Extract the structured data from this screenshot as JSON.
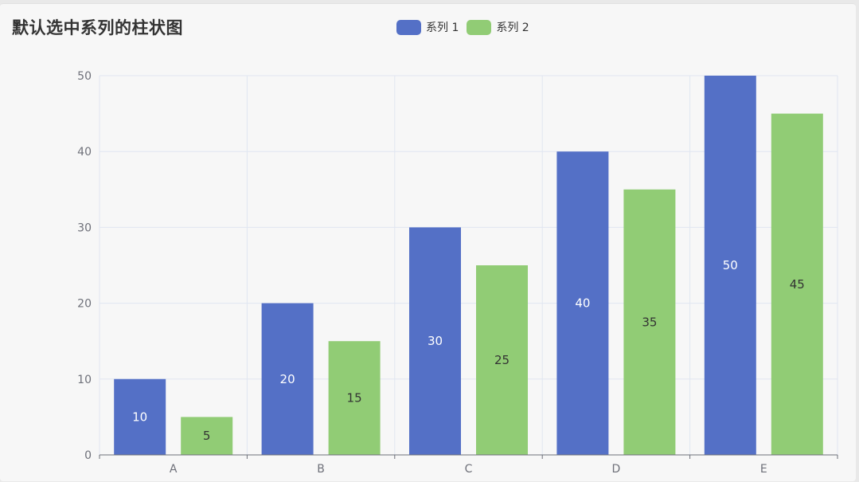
{
  "title": "默认选中系列的柱状图",
  "colors": {
    "series1": "#5470c6",
    "series2": "#91cc75",
    "grid": "#e0e6f1",
    "axis": "#6e7079"
  },
  "chart_data": {
    "type": "bar",
    "categories": [
      "A",
      "B",
      "C",
      "D",
      "E"
    ],
    "series": [
      {
        "name": "系列 1",
        "values": [
          10,
          20,
          30,
          40,
          50
        ],
        "color": "#5470c6",
        "label_color": "#ffffff"
      },
      {
        "name": "系列 2",
        "values": [
          5,
          15,
          25,
          35,
          45
        ],
        "color": "#91cc75",
        "label_color": "#333333"
      }
    ],
    "ylim": [
      0,
      50
    ],
    "yticks": [
      0,
      10,
      20,
      30,
      40,
      50
    ],
    "grid": true,
    "legend_position": "top-center",
    "data_labels": "inside"
  }
}
